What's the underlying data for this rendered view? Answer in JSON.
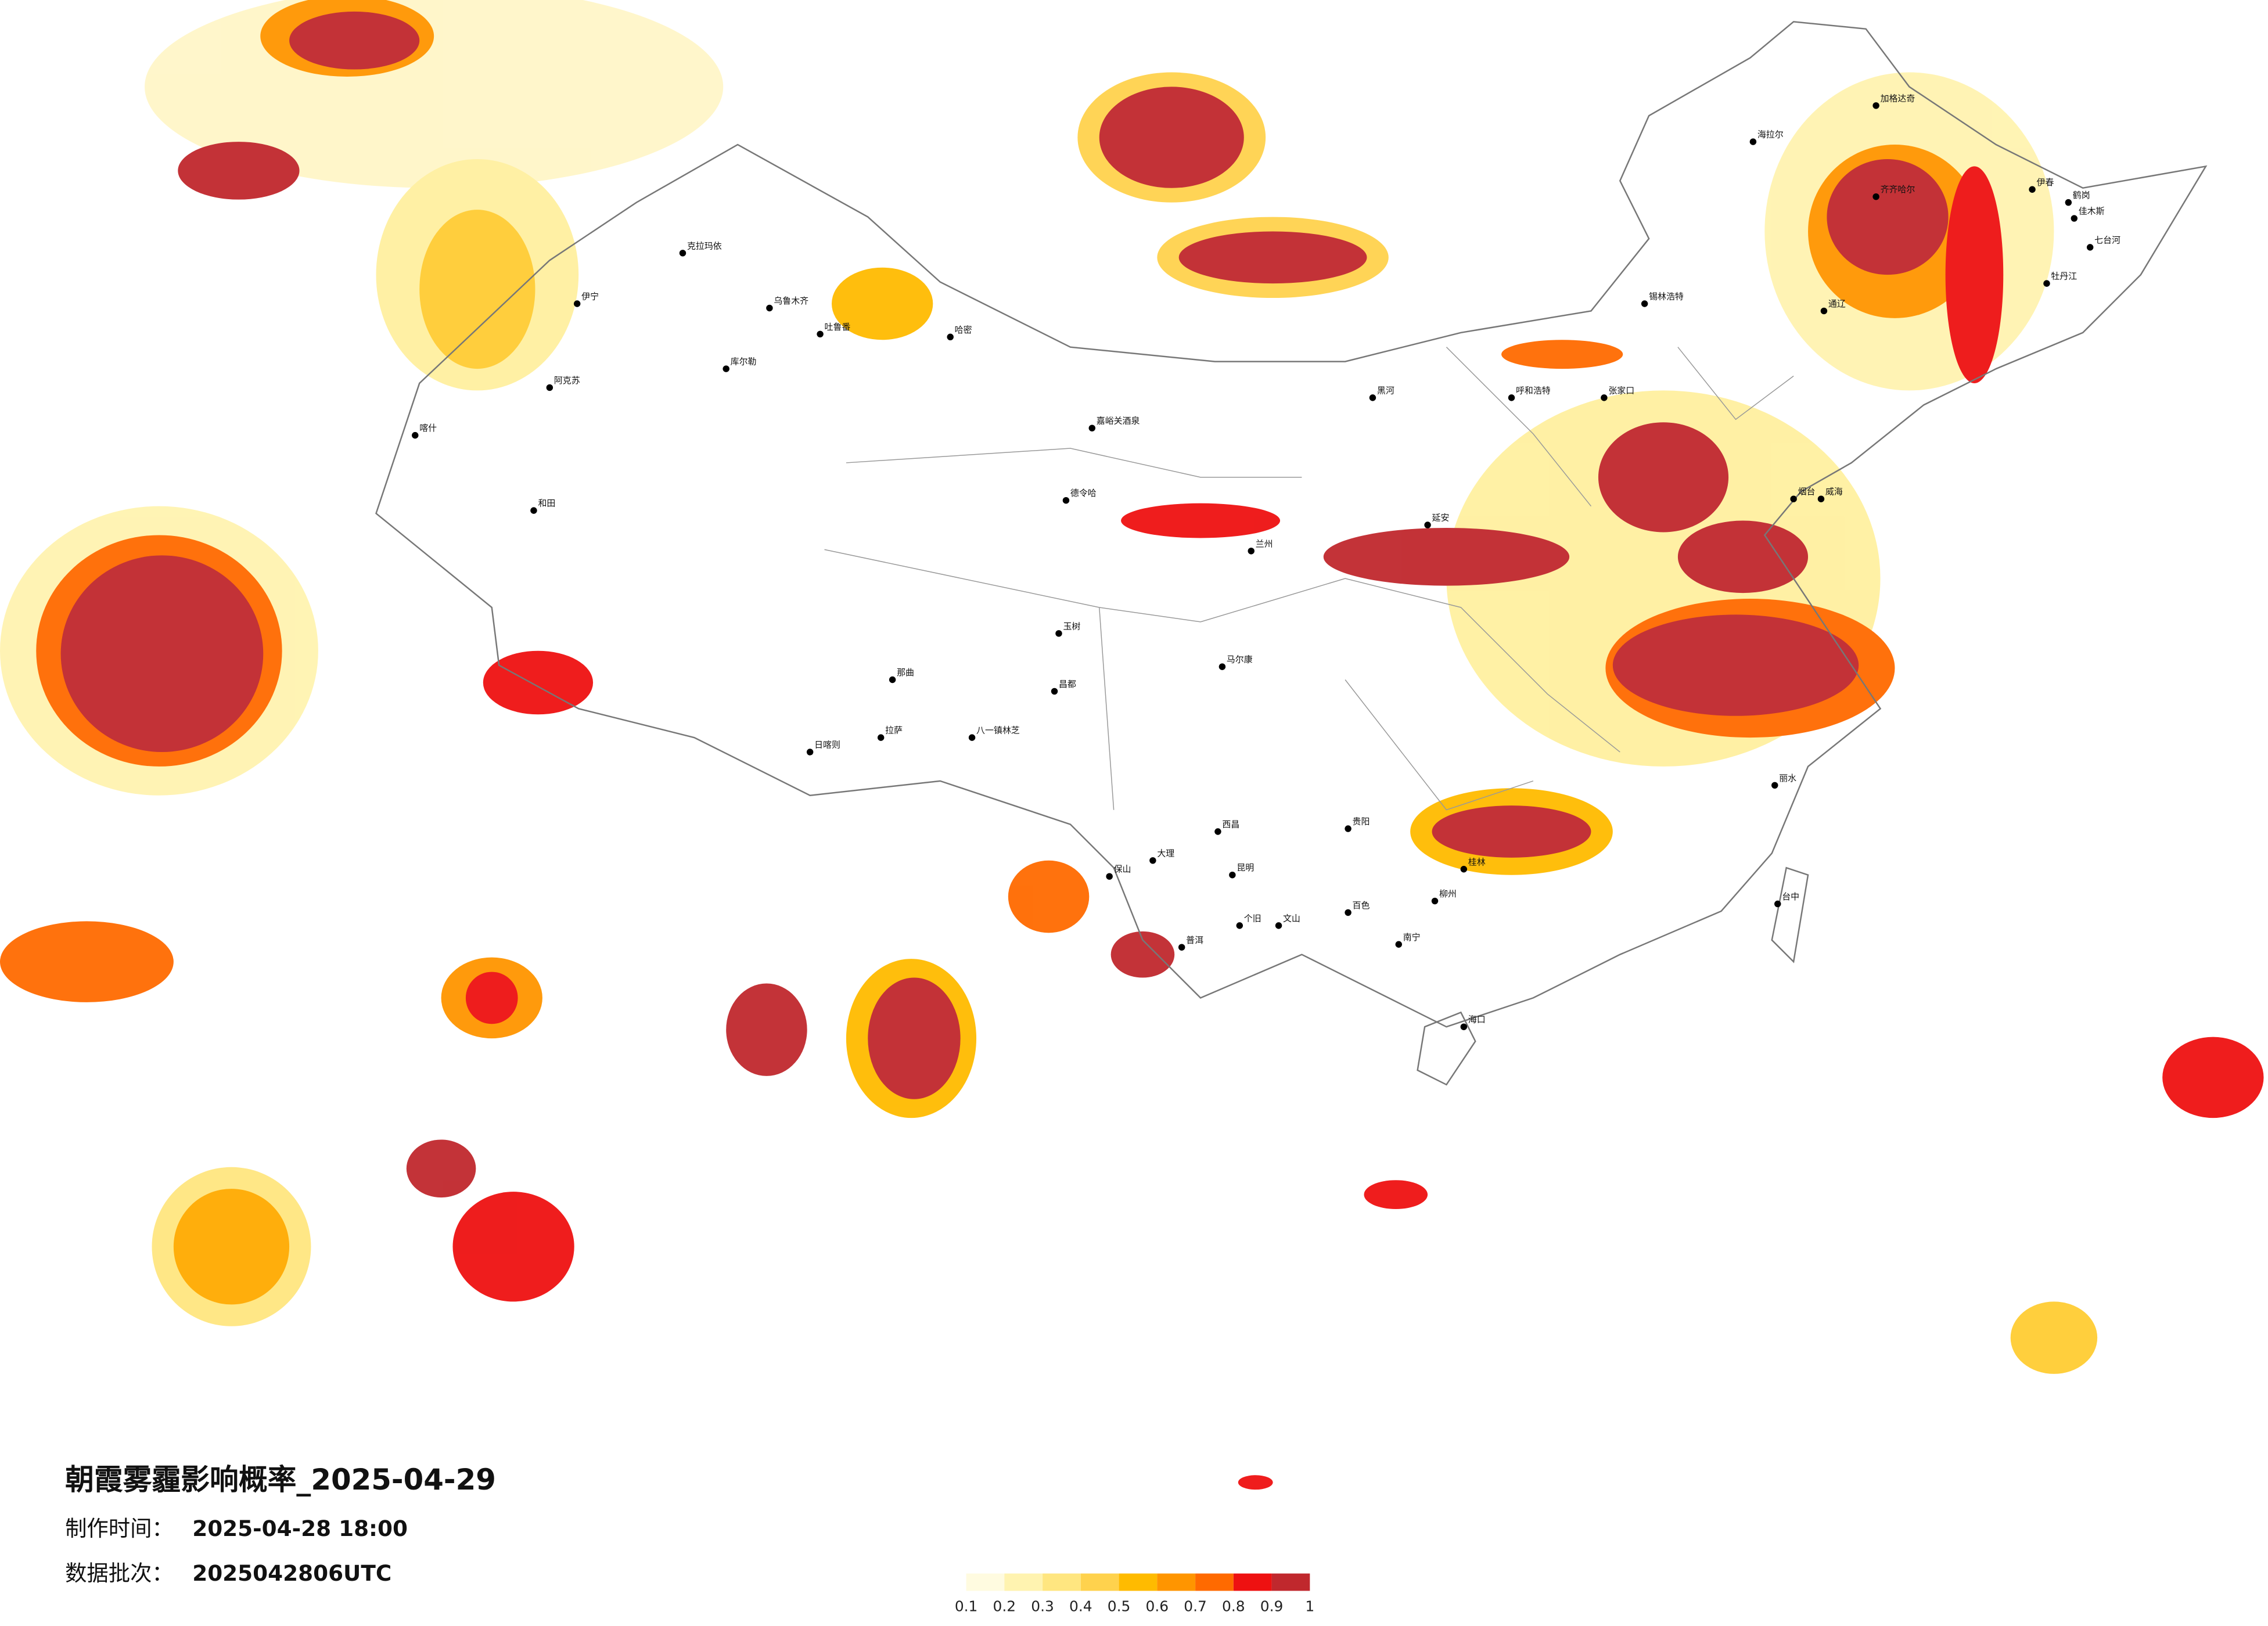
{
  "header": {
    "title": "朝霞雾霾影响概率_2025-04-29",
    "made_label": "制作时间：",
    "made_time": "2025-04-28 18:00",
    "batch_label": "数据批次：",
    "batch": "2025042806UTC"
  },
  "legend": {
    "ticks": [
      0.1,
      0.2,
      0.3,
      0.4,
      0.5,
      0.6,
      0.7,
      0.8,
      0.9,
      1
    ],
    "colors": [
      "#fffbe0",
      "#fff3b0",
      "#ffe680",
      "#ffd24d",
      "#ffbb00",
      "#ff9500",
      "#ff6a00",
      "#ee1111",
      "#c0282d"
    ]
  },
  "cities": [
    "克拉玛依",
    "乌鲁木齐",
    "吐鲁番",
    "哈密",
    "库尔勒",
    "阿克苏",
    "喀什",
    "和田",
    "伊宁",
    "嘉峪关酒泉",
    "德令哈",
    "玉树",
    "那曲",
    "拉萨",
    "日喀则",
    "八一镇林芝",
    "昌都",
    "马尔康",
    "兰州",
    "海拉尔",
    "加格达奇",
    "齐齐哈尔",
    "伊春",
    "鹤岗",
    "佳木斯",
    "七台河",
    "牡丹江",
    "锡林浩特",
    "呼和浩特",
    "张家口",
    "延安",
    "台中",
    "海口",
    "南宁",
    "昆明",
    "贵阳",
    "大理",
    "保山",
    "普洱",
    "文山",
    "个旧",
    "百色",
    "柳州",
    "桂林",
    "西昌",
    "黑河",
    "通辽",
    "烟台",
    "威海",
    "丽水"
  ]
}
